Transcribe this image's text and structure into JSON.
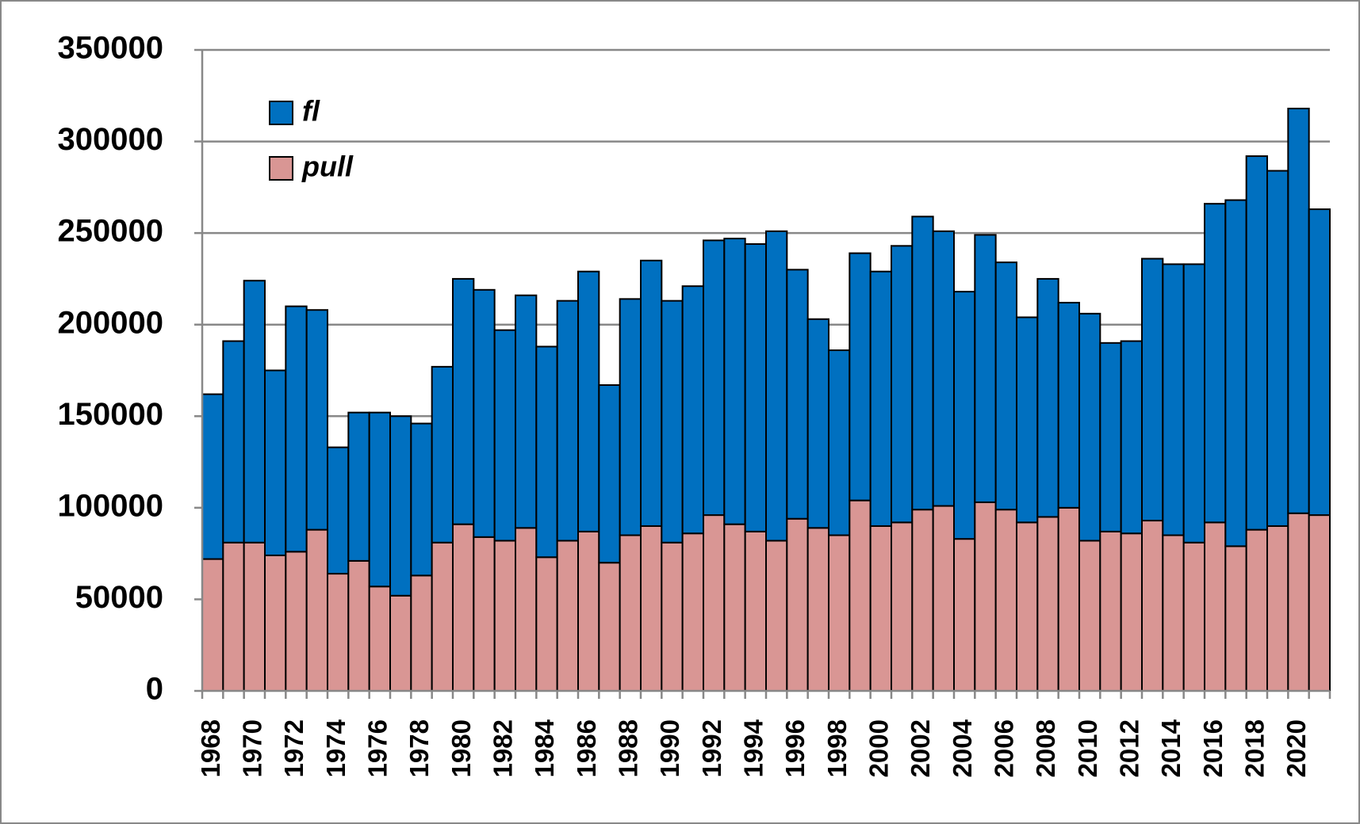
{
  "chart_data": {
    "type": "stacked-bar",
    "categories": [
      "1968",
      null,
      "1970",
      null,
      "1972",
      null,
      "1974",
      null,
      "1976",
      null,
      "1978",
      null,
      "1980",
      null,
      "1982",
      null,
      "1984",
      null,
      "1986",
      null,
      "1988",
      null,
      "1990",
      null,
      "1992",
      null,
      "1994",
      null,
      "1996",
      null,
      "1998",
      null,
      "2000",
      null,
      "2002",
      null,
      "2004",
      null,
      "2006",
      null,
      "2008",
      null,
      "2010",
      null,
      "2012",
      null,
      "2014",
      null,
      "2016",
      null,
      "2018",
      null,
      "2020",
      null
    ],
    "series": [
      {
        "name": "pull",
        "color": "#d99694",
        "values": [
          72000,
          81000,
          81000,
          74000,
          76000,
          88000,
          64000,
          71000,
          57000,
          52000,
          63000,
          81000,
          91000,
          84000,
          82000,
          89000,
          73000,
          82000,
          87000,
          70000,
          85000,
          90000,
          81000,
          86000,
          96000,
          91000,
          87000,
          82000,
          94000,
          89000,
          85000,
          104000,
          90000,
          92000,
          99000,
          101000,
          83000,
          103000,
          99000,
          92000,
          95000,
          100000,
          82000,
          87000,
          86000,
          93000,
          85000,
          81000,
          92000,
          79000,
          88000,
          90000,
          97000,
          96000
        ]
      },
      {
        "name": "fl",
        "color": "#0070c0",
        "values": [
          90000,
          110000,
          143000,
          101000,
          134000,
          120000,
          69000,
          81000,
          95000,
          98000,
          83000,
          96000,
          134000,
          135000,
          115000,
          127000,
          115000,
          131000,
          142000,
          97000,
          129000,
          145000,
          132000,
          135000,
          150000,
          156000,
          157000,
          169000,
          136000,
          114000,
          101000,
          135000,
          139000,
          151000,
          160000,
          150000,
          135000,
          146000,
          135000,
          112000,
          130000,
          112000,
          124000,
          103000,
          105000,
          143000,
          148000,
          152000,
          174000,
          189000,
          204000,
          194000,
          221000,
          167000
        ]
      }
    ],
    "ylim": [
      0,
      350000
    ],
    "yticks": [
      0,
      50000,
      100000,
      150000,
      200000,
      250000,
      300000,
      350000
    ],
    "grid": true,
    "legend": "upper-left"
  }
}
